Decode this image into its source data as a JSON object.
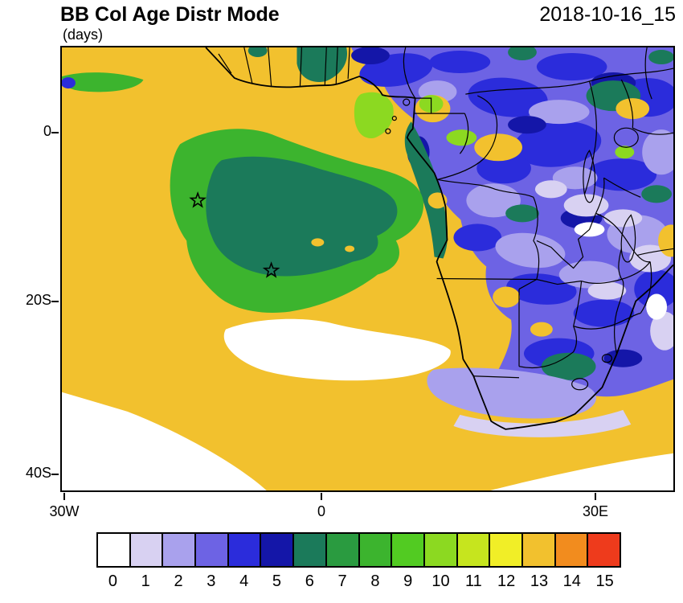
{
  "header": {
    "title": "BB Col Age Distr Mode",
    "subtitle": "(days)",
    "timestamp": "2018-10-16_15"
  },
  "axes": {
    "y_ticks": [
      {
        "label": "0"
      },
      {
        "label": "20S"
      },
      {
        "label": "40S"
      }
    ],
    "x_ticks": [
      {
        "label": "30W"
      },
      {
        "label": "0"
      },
      {
        "label": "30E"
      }
    ]
  },
  "colorbar": {
    "values": [
      "0",
      "1",
      "2",
      "3",
      "4",
      "5",
      "6",
      "7",
      "8",
      "9",
      "10",
      "11",
      "12",
      "13",
      "14",
      "15"
    ],
    "colors": [
      "#ffffff",
      "#d8d1f2",
      "#a9a1ed",
      "#6d63e4",
      "#2b2cdb",
      "#1416a8",
      "#1b7a5a",
      "#2a9b40",
      "#3cb42e",
      "#52cb22",
      "#8cd921",
      "#c6e51e",
      "#f1ee27",
      "#f2c12e",
      "#f28c1e",
      "#ee3b1c"
    ]
  },
  "map": {
    "markers": [
      {
        "symbol": "star",
        "approx_lon": "15W",
        "approx_lat": "8S"
      },
      {
        "symbol": "star",
        "approx_lon": "7W",
        "approx_lat": "16S"
      }
    ]
  },
  "chart_data": {
    "type": "heatmap",
    "title": "BB Col Age Distr Mode",
    "units_label": "(days)",
    "timestamp": "2018-10-16_15",
    "x_axis": {
      "ticks": [
        "30W",
        "0",
        "30E"
      ],
      "approx_range_lon_deg": [
        -30.5,
        39
      ]
    },
    "y_axis": {
      "ticks": [
        "0",
        "20S",
        "40S"
      ],
      "approx_range_lat_deg": [
        10,
        -42
      ]
    },
    "legend": {
      "position": "bottom",
      "values": [
        0,
        1,
        2,
        3,
        4,
        5,
        6,
        7,
        8,
        9,
        10,
        11,
        12,
        13,
        14,
        15
      ],
      "colors": [
        "#ffffff",
        "#d8d1f2",
        "#a9a1ed",
        "#6d63e4",
        "#2b2cdb",
        "#1416a8",
        "#1b7a5a",
        "#2a9b40",
        "#3cb42e",
        "#52cb22",
        "#8cd921",
        "#c6e51e",
        "#f1ee27",
        "#f2c12e",
        "#f28c1e",
        "#ee3b1c"
      ]
    },
    "regions": [
      {
        "area": "South Atlantic and Gulf of Guinea ocean background",
        "age_days": 13
      },
      {
        "area": "Aged smoke plume core west of Angola (approx 18W-7E, 4S-17S)",
        "age_days": 6
      },
      {
        "area": "Plume rim surrounding core",
        "age_days": 8
      },
      {
        "area": "Central / southern / eastern Africa east of ~12E (fresh smoke)",
        "age_days": "1-5"
      },
      {
        "area": "Scattered pale patches over eastern interior",
        "age_days": "0-2"
      },
      {
        "area": "Far South Atlantic south of ~27S and Southern Ocean margin",
        "age_days": 0
      },
      {
        "area": "Small yellow-green equatorial coastal patches",
        "age_days": "10-11"
      }
    ],
    "markers": [
      {
        "symbol": "star",
        "approx_lon_lat": [
          "15W",
          "8S"
        ]
      },
      {
        "symbol": "star",
        "approx_lon_lat": [
          "7W",
          "16S"
        ]
      }
    ]
  }
}
